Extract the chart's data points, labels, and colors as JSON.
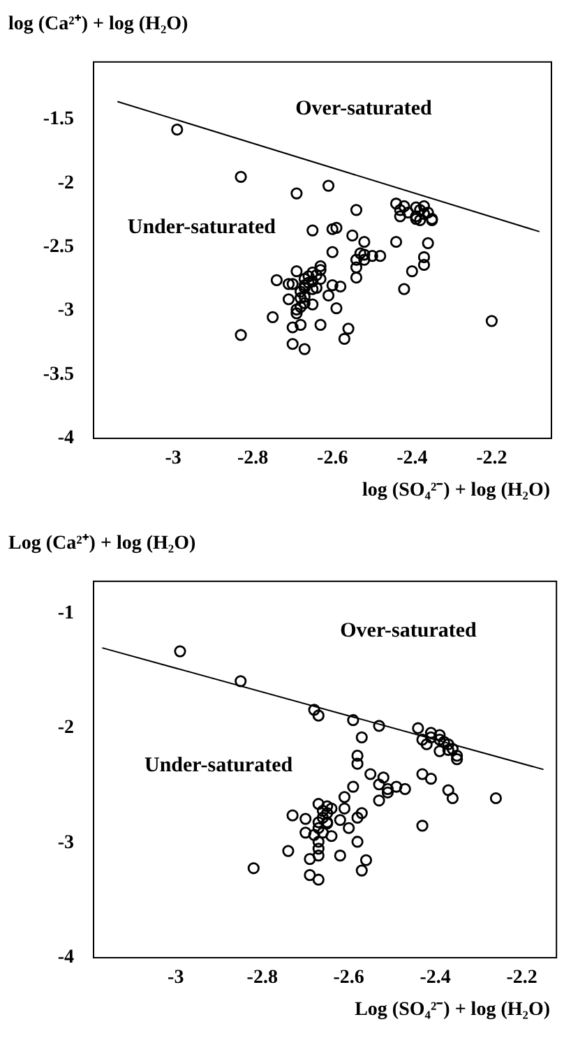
{
  "chart_data": [
    {
      "type": "scatter",
      "xlabel": "log (SO₄²⁻) + log (H₂O)",
      "ylabel": "log (Ca²⁺) + log (H₂O)",
      "xlim": [
        -3.2,
        -2.05
      ],
      "ylim": [
        -4,
        -1.05
      ],
      "xticks": [
        -3,
        -2.8,
        -2.6,
        -2.4,
        -2.2
      ],
      "yticks": [
        -1.5,
        -2,
        -2.5,
        -3,
        -3.5,
        -4
      ],
      "marker": "circle",
      "annotations": [
        "Over-saturated",
        "Under-saturated"
      ],
      "series": [
        {
          "type": "line",
          "color": "#000000",
          "marker": "none",
          "line_style": "solid",
          "x": [
            -3.14,
            -2.08
          ],
          "values": [
            -1.36,
            -2.38
          ]
        },
        {
          "type": "scatter",
          "color": "#000000",
          "x": [
            -2.99,
            -2.83,
            -2.69,
            -2.61,
            -2.54,
            -2.65,
            -2.6,
            -2.59,
            -2.6,
            -2.55,
            -2.52,
            -2.53,
            -2.54,
            -2.52,
            -2.5,
            -2.48,
            -2.52,
            -2.54,
            -2.54,
            -2.44,
            -2.44,
            -2.43,
            -2.42,
            -2.41,
            -2.39,
            -2.38,
            -2.37,
            -2.36,
            -2.35,
            -2.43,
            -2.39,
            -2.38,
            -2.35,
            -2.37,
            -2.39,
            -2.36,
            -2.37,
            -2.37,
            -2.4,
            -2.42,
            -2.2,
            -2.74,
            -2.71,
            -2.7,
            -2.69,
            -2.71,
            -2.75,
            -2.83,
            -2.7,
            -2.68,
            -2.7,
            -2.67,
            -2.63,
            -2.57,
            -2.56,
            -2.59,
            -2.61,
            -2.6,
            -2.58,
            -2.65,
            -2.69,
            -2.69,
            -2.63,
            -2.63,
            -2.63,
            -2.64,
            -2.65,
            -2.67,
            -2.66,
            -2.67,
            -2.68,
            -2.67,
            -2.68,
            -2.67,
            -2.68,
            -2.65,
            -2.65,
            -2.64,
            -2.66,
            -2.67
          ],
          "values": [
            -1.58,
            -1.95,
            -2.08,
            -2.02,
            -2.21,
            -2.37,
            -2.36,
            -2.35,
            -2.54,
            -2.41,
            -2.46,
            -2.55,
            -2.6,
            -2.56,
            -2.57,
            -2.57,
            -2.6,
            -2.66,
            -2.74,
            -2.46,
            -2.16,
            -2.21,
            -2.18,
            -2.23,
            -2.19,
            -2.21,
            -2.24,
            -2.23,
            -2.28,
            -2.26,
            -2.26,
            -2.29,
            -2.29,
            -2.18,
            -2.28,
            -2.47,
            -2.58,
            -2.64,
            -2.69,
            -2.83,
            -3.08,
            -2.76,
            -2.79,
            -2.79,
            -2.69,
            -2.91,
            -3.05,
            -3.19,
            -3.13,
            -3.11,
            -3.26,
            -3.3,
            -3.11,
            -3.22,
            -3.14,
            -2.98,
            -2.88,
            -2.8,
            -2.81,
            -2.95,
            -2.99,
            -3.02,
            -2.65,
            -2.68,
            -2.75,
            -2.82,
            -2.7,
            -2.75,
            -2.78,
            -2.82,
            -2.85,
            -2.89,
            -2.9,
            -2.94,
            -2.97,
            -2.83,
            -2.77,
            -2.72,
            -2.73,
            -2.8
          ]
        }
      ]
    },
    {
      "type": "scatter",
      "xlabel": "Log (SO₄²⁻) + log (H₂O)",
      "ylabel": "Log (Ca²⁺) + log (H₂O)",
      "xlim": [
        -3.19,
        -2.12
      ],
      "ylim": [
        -4,
        -0.72
      ],
      "xticks": [
        -3,
        -2.8,
        -2.6,
        -2.4,
        -2.2
      ],
      "yticks": [
        -1,
        -2,
        -3,
        -4
      ],
      "marker": "circle",
      "annotations": [
        "Over-saturated",
        "Under-saturated"
      ],
      "series": [
        {
          "type": "line",
          "color": "#000000",
          "marker": "none",
          "line_style": "solid",
          "x": [
            -3.17,
            -2.15
          ],
          "values": [
            -1.3,
            -2.36
          ]
        },
        {
          "type": "scatter",
          "color": "#000000",
          "x": [
            -2.99,
            -2.85,
            -2.68,
            -2.67,
            -2.59,
            -2.53,
            -2.57,
            -2.58,
            -2.58,
            -2.59,
            -2.55,
            -2.52,
            -2.53,
            -2.51,
            -2.51,
            -2.49,
            -2.47,
            -2.53,
            -2.61,
            -2.61,
            -2.62,
            -2.57,
            -2.58,
            -2.6,
            -2.58,
            -2.62,
            -2.56,
            -2.57,
            -2.67,
            -2.69,
            -2.69,
            -2.67,
            -2.74,
            -2.82,
            -2.73,
            -2.7,
            -2.7,
            -2.64,
            -2.67,
            -2.65,
            -2.44,
            -2.41,
            -2.43,
            -2.42,
            -2.41,
            -2.39,
            -2.38,
            -2.37,
            -2.36,
            -2.35,
            -2.35,
            -2.39,
            -2.37,
            -2.39,
            -2.43,
            -2.41,
            -2.37,
            -2.36,
            -2.26,
            -2.43,
            -2.66,
            -2.66,
            -2.65,
            -2.67,
            -2.65,
            -2.64,
            -2.67,
            -2.66,
            -2.68,
            -2.65,
            -2.67,
            -2.67
          ],
          "values": [
            -1.33,
            -1.59,
            -1.84,
            -1.89,
            -1.93,
            -1.98,
            -2.08,
            -2.24,
            -2.31,
            -2.51,
            -2.4,
            -2.43,
            -2.49,
            -2.53,
            -2.56,
            -2.51,
            -2.53,
            -2.63,
            -2.6,
            -2.7,
            -2.8,
            -2.74,
            -2.78,
            -2.87,
            -2.99,
            -3.11,
            -3.15,
            -3.24,
            -3.32,
            -3.28,
            -3.14,
            -3.11,
            -3.07,
            -3.22,
            -2.76,
            -2.79,
            -2.91,
            -2.94,
            -2.66,
            -2.68,
            -2.0,
            -2.04,
            -2.1,
            -2.14,
            -2.08,
            -2.1,
            -2.12,
            -2.14,
            -2.18,
            -2.24,
            -2.27,
            -2.2,
            -2.19,
            -2.06,
            -2.4,
            -2.44,
            -2.54,
            -2.61,
            -2.61,
            -2.85,
            -2.72,
            -2.78,
            -2.83,
            -2.87,
            -2.74,
            -2.7,
            -2.82,
            -2.91,
            -2.93,
            -2.82,
            -2.99,
            -3.05
          ]
        }
      ]
    }
  ]
}
